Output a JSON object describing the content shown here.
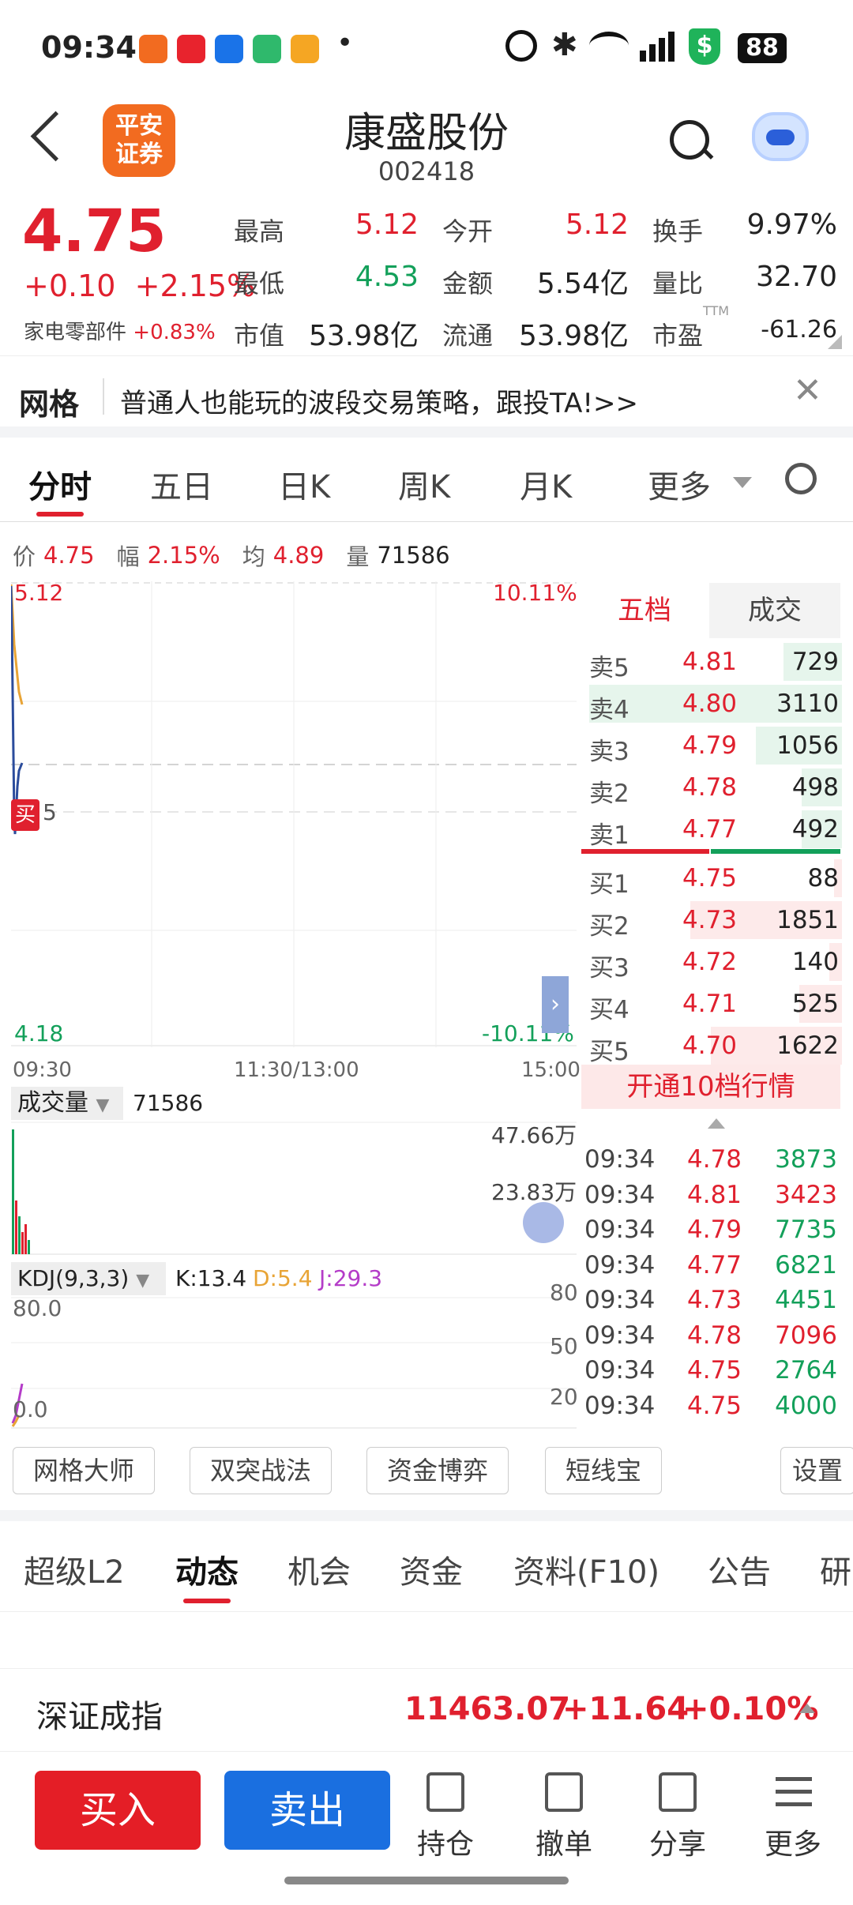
{
  "status_bar": {
    "time": "09:34",
    "battery": "88",
    "notification_dot": "•"
  },
  "header": {
    "name": "康盛股份",
    "code": "002418",
    "broker_logo": "平安\n证券"
  },
  "quote": {
    "price": "4.75",
    "change": "+0.10",
    "change_pct": "+2.15%",
    "sector_name": "家电零部件",
    "sector_pct": "+0.83%",
    "stats": [
      {
        "label": "最高",
        "value": "5.12"
      },
      {
        "label": "今开",
        "value": "5.12"
      },
      {
        "label": "换手",
        "value": "9.97%"
      },
      {
        "label": "最低",
        "value": "4.53"
      },
      {
        "label": "金额",
        "value": "5.54亿"
      },
      {
        "label": "量比",
        "value": "32.70"
      },
      {
        "label": "市值",
        "value": "53.98亿"
      },
      {
        "label": "流通",
        "value": "53.98亿"
      },
      {
        "label": "市盈",
        "value": "-61.26",
        "sup": "TTM"
      }
    ]
  },
  "banner": {
    "tag": "网格",
    "text": "普通人也能玩的波段交易策略，跟投TA!>>"
  },
  "chart_tabs": [
    "分时",
    "五日",
    "日K",
    "周K",
    "月K",
    "更多"
  ],
  "info_line": {
    "price_label": "价",
    "price": "4.75",
    "amp_label": "幅",
    "amp": "2.15%",
    "avg_label": "均",
    "avg": "4.89",
    "vol_label": "量",
    "vol": "71586"
  },
  "chart": {
    "max_price": "5.12",
    "max_pct": "10.11%",
    "min_price": "4.18",
    "min_pct": "-10.11%",
    "mid_label": "5",
    "buy_marker": "买",
    "times": [
      "09:30",
      "11:30/13:00",
      "15:00"
    ],
    "volume_label": "成交量",
    "volume_value": "71586",
    "vol_ticks": [
      "47.66万",
      "23.83万"
    ],
    "kdj_label": "KDJ(9,3,3)",
    "k": "K:13.4",
    "d": "D:5.4",
    "j": "J:29.3",
    "kdj_ticks_left": [
      "80.0",
      "0.0"
    ],
    "kdj_ticks_right": [
      "80",
      "50",
      "20"
    ]
  },
  "order_book": {
    "tabs": [
      "五档",
      "成交"
    ],
    "asks": [
      {
        "label": "卖5",
        "price": "4.81",
        "vol": "729",
        "bar": 0.23
      },
      {
        "label": "卖4",
        "price": "4.80",
        "vol": "3110",
        "bar": 1.0
      },
      {
        "label": "卖3",
        "price": "4.79",
        "vol": "1056",
        "bar": 0.34
      },
      {
        "label": "卖2",
        "price": "4.78",
        "vol": "498",
        "bar": 0.16
      },
      {
        "label": "卖1",
        "price": "4.77",
        "vol": "492",
        "bar": 0.16
      }
    ],
    "bids": [
      {
        "label": "买1",
        "price": "4.75",
        "vol": "88",
        "bar": 0.03
      },
      {
        "label": "买2",
        "price": "4.73",
        "vol": "1851",
        "bar": 0.6
      },
      {
        "label": "买3",
        "price": "4.72",
        "vol": "140",
        "bar": 0.05
      },
      {
        "label": "买4",
        "price": "4.71",
        "vol": "525",
        "bar": 0.17
      },
      {
        "label": "买5",
        "price": "4.70",
        "vol": "1622",
        "bar": 0.52
      }
    ],
    "upgrade": "开通10档行情",
    "trades": [
      {
        "t": "09:34",
        "p": "4.78",
        "v": "3873",
        "dir": "green"
      },
      {
        "t": "09:34",
        "p": "4.81",
        "v": "3423",
        "dir": "red"
      },
      {
        "t": "09:34",
        "p": "4.79",
        "v": "7735",
        "dir": "green"
      },
      {
        "t": "09:34",
        "p": "4.77",
        "v": "6821",
        "dir": "green"
      },
      {
        "t": "09:34",
        "p": "4.73",
        "v": "4451",
        "dir": "green"
      },
      {
        "t": "09:34",
        "p": "4.78",
        "v": "7096",
        "dir": "red"
      },
      {
        "t": "09:34",
        "p": "4.75",
        "v": "2764",
        "dir": "green"
      },
      {
        "t": "09:34",
        "p": "4.75",
        "v": "4000",
        "dir": "green"
      }
    ]
  },
  "tools": [
    "网格大师",
    "双突战法",
    "资金博弈",
    "短线宝",
    "设置"
  ],
  "bottom_tabs": [
    "超级L2",
    "动态",
    "机会",
    "资金",
    "资料(F10)",
    "公告",
    "研"
  ],
  "ticker": {
    "name": "深证成指",
    "value": "11463.07",
    "change": "+11.64",
    "pct": "+0.10%"
  },
  "nav": {
    "buy": "买入",
    "sell": "卖出",
    "hold": "持仓",
    "cancel": "撤单",
    "share": "分享",
    "more": "更多"
  }
}
